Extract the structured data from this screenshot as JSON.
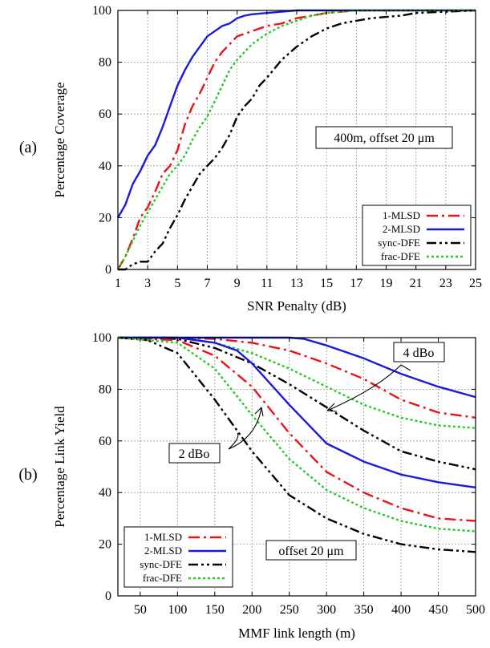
{
  "chart_data": [
    {
      "type": "line",
      "panel_label": "(a)",
      "xlabel": "SNR Penalty (dB)",
      "ylabel": "Percentage Coverage",
      "xlim": [
        1,
        25
      ],
      "ylim": [
        0,
        100
      ],
      "xticks": [
        "1",
        "3",
        "5",
        "7",
        "9",
        "11",
        "13",
        "15",
        "17",
        "19",
        "21",
        "23",
        "25"
      ],
      "yticks": [
        "0",
        "20",
        "40",
        "60",
        "80",
        "100"
      ],
      "grid": true,
      "legend_position": "bottom-right",
      "annotation": "400m, offset 20 μm",
      "series": [
        {
          "name": "1-MLSD",
          "color": "#e8141a",
          "dash": "dash-dot",
          "x": [
            1,
            1.5,
            2,
            2.5,
            3,
            3.5,
            4,
            4.5,
            5,
            5.5,
            6,
            6.5,
            7,
            7.5,
            8,
            8.5,
            9,
            9.5,
            10,
            10.5,
            11,
            12,
            13,
            14,
            15,
            16,
            17,
            25
          ],
          "y": [
            0,
            5,
            12,
            20,
            24,
            30,
            37,
            40,
            46,
            56,
            63,
            68,
            74,
            80,
            84,
            87,
            90,
            91,
            92,
            93,
            94,
            95,
            97,
            98,
            99,
            99.5,
            100,
            100
          ]
        },
        {
          "name": "2-MLSD",
          "color": "#1a1adc",
          "dash": "solid",
          "x": [
            1,
            1.5,
            2,
            2.5,
            3,
            3.5,
            4,
            4.5,
            5,
            5.5,
            6,
            6.5,
            7,
            7.5,
            8,
            8.5,
            9,
            9.5,
            10,
            11,
            12,
            13,
            14,
            15,
            17,
            25
          ],
          "y": [
            20,
            25,
            33,
            38,
            44,
            48,
            55,
            63,
            71,
            77,
            82,
            86,
            90,
            92,
            94,
            95,
            97,
            98,
            98.5,
            99,
            99.5,
            100,
            100,
            100,
            100,
            100
          ]
        },
        {
          "name": "sync-DFE",
          "color": "#000000",
          "dash": "dash-dot-dot",
          "x": [
            1,
            1.5,
            2,
            2.5,
            3,
            3.5,
            4,
            4.5,
            5,
            5.5,
            6,
            6.5,
            7,
            7.5,
            8,
            8.5,
            9,
            9.5,
            10,
            10.5,
            11,
            12,
            13,
            14,
            15,
            16,
            17,
            18,
            19,
            20,
            21,
            25
          ],
          "y": [
            0,
            0,
            2,
            3,
            3,
            7,
            10,
            16,
            21,
            27,
            32,
            37,
            40,
            43,
            47,
            52,
            59,
            63,
            66,
            71,
            74,
            81,
            86,
            90,
            93,
            95,
            96,
            97,
            97.5,
            98,
            99,
            100
          ]
        },
        {
          "name": "frac-DFE",
          "color": "#22cc22",
          "dash": "dotted",
          "x": [
            1,
            1.5,
            2,
            2.5,
            3,
            3.5,
            4,
            4.5,
            5,
            5.5,
            6,
            6.5,
            7,
            7.5,
            8,
            8.5,
            9,
            9.5,
            10,
            10.5,
            11,
            12,
            13,
            14,
            15,
            16,
            17,
            25
          ],
          "y": [
            0,
            5,
            11,
            17,
            22,
            27,
            32,
            37,
            40,
            44,
            50,
            55,
            59,
            65,
            71,
            77,
            81,
            84,
            87,
            89,
            91,
            94,
            96,
            98,
            99,
            99.5,
            100,
            100
          ]
        }
      ]
    },
    {
      "type": "line",
      "panel_label": "(b)",
      "xlabel": "MMF link length (m)",
      "ylabel": "Percentage Link Yield",
      "xlim": [
        20,
        500
      ],
      "ylim": [
        0,
        100
      ],
      "xticks": [
        "50",
        "100",
        "150",
        "200",
        "250",
        "300",
        "350",
        "400",
        "450",
        "500"
      ],
      "yticks": [
        "0",
        "20",
        "40",
        "60",
        "80",
        "100"
      ],
      "grid": true,
      "legend_position": "bottom-left",
      "annotations": [
        "4 dBo",
        "2 dBo",
        "offset 20 μm"
      ],
      "series": [
        {
          "name": "1-MLSD",
          "color": "#e8141a",
          "dash": "dash-dot",
          "group": "4 dBo",
          "x": [
            20,
            100,
            150,
            200,
            250,
            300,
            350,
            400,
            450,
            500
          ],
          "y": [
            100,
            100,
            99.5,
            98,
            95,
            90,
            84,
            76,
            71,
            69
          ]
        },
        {
          "name": "2-MLSD",
          "color": "#1a1adc",
          "dash": "solid",
          "group": "4 dBo",
          "x": [
            20,
            100,
            150,
            200,
            250,
            270,
            300,
            350,
            400,
            450,
            500
          ],
          "y": [
            100,
            100,
            100,
            100,
            100,
            99.5,
            97,
            92,
            86,
            81,
            77
          ]
        },
        {
          "name": "sync-DFE",
          "color": "#000000",
          "dash": "dash-dot-dot",
          "group": "4 dBo",
          "x": [
            20,
            100,
            150,
            200,
            250,
            300,
            350,
            400,
            450,
            500
          ],
          "y": [
            100,
            99.5,
            96,
            90,
            82,
            73,
            64,
            56,
            52,
            49
          ]
        },
        {
          "name": "frac-DFE",
          "color": "#22cc22",
          "dash": "dotted",
          "group": "4 dBo",
          "x": [
            20,
            100,
            150,
            200,
            250,
            300,
            350,
            400,
            450,
            500
          ],
          "y": [
            100,
            100,
            98,
            94,
            88,
            81,
            74,
            69,
            66,
            65
          ]
        },
        {
          "name": "1-MLSD",
          "color": "#e8141a",
          "dash": "dash-dot",
          "group": "2 dBo",
          "x": [
            20,
            100,
            150,
            200,
            250,
            300,
            350,
            400,
            450,
            500
          ],
          "y": [
            100,
            99,
            93,
            81,
            63,
            48,
            40,
            34,
            30,
            29
          ]
        },
        {
          "name": "2-MLSD",
          "color": "#1a1adc",
          "dash": "solid",
          "group": "2 dBo",
          "x": [
            20,
            100,
            150,
            180,
            200,
            250,
            300,
            350,
            400,
            450,
            500
          ],
          "y": [
            100,
            100,
            98,
            95,
            90,
            74,
            59,
            52,
            47,
            44,
            42
          ]
        },
        {
          "name": "sync-DFE",
          "color": "#000000",
          "dash": "dash-dot-dot",
          "group": "2 dBo",
          "x": [
            20,
            60,
            100,
            150,
            200,
            250,
            300,
            350,
            400,
            450,
            500
          ],
          "y": [
            100,
            99,
            94,
            76,
            56,
            39,
            30,
            24,
            20,
            18,
            17
          ]
        },
        {
          "name": "frac-DFE",
          "color": "#22cc22",
          "dash": "dotted",
          "group": "2 dBo",
          "x": [
            20,
            100,
            150,
            200,
            250,
            300,
            350,
            400,
            450,
            500
          ],
          "y": [
            100,
            98,
            88,
            70,
            53,
            41,
            34,
            29,
            26,
            25
          ]
        }
      ]
    }
  ]
}
